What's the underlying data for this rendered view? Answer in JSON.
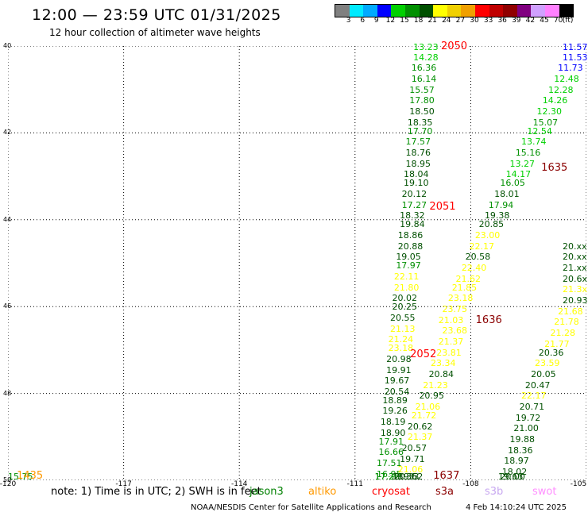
{
  "title": "12:00 — 23:59 UTC 01/31/2025",
  "subtitle": "12 hour collection of altimeter wave heights",
  "legend": {
    "colors": [
      "#808080",
      "#00eaff",
      "#00aaff",
      "#0000ff",
      "#00d000",
      "#009000",
      "#005000",
      "#ffff00",
      "#f0d000",
      "#f0a000",
      "#ff0000",
      "#c00000",
      "#900000",
      "#800080",
      "#d0a0ff",
      "#ff80ff",
      "#000000"
    ],
    "labels": [
      "3",
      "6",
      "9",
      "12",
      "15",
      "18",
      "21",
      "24",
      "27",
      "30",
      "33",
      "36",
      "39",
      "42",
      "45",
      "70"
    ],
    "unit": "(ft)"
  },
  "axes": {
    "lat_labels": [
      "40",
      "42",
      "44",
      "46",
      "48",
      "50"
    ],
    "lon_labels": [
      "-120",
      "-117",
      "-114",
      "-111",
      "-108",
      "-105"
    ]
  },
  "note": {
    "text": "note:  1) Time is in UTC;  2) SWH is in feet",
    "satellites": [
      {
        "name": "jason3",
        "color": "#008000"
      },
      {
        "name": "altiko",
        "color": "#ff9900"
      },
      {
        "name": "cryosat",
        "color": "#ff0000"
      },
      {
        "name": "s3a",
        "color": "#8b0000"
      },
      {
        "name": "s3b",
        "color": "#c8a8f0"
      },
      {
        "name": "swot",
        "color": "#ff90ff"
      }
    ]
  },
  "footer": {
    "agency": "NOAA/NESDIS Center for Satellite Applications and Research",
    "timestamp": "4 Feb 14:10:24 UTC 2025"
  },
  "chart_data": {
    "type": "scatter",
    "xlim": [
      -120,
      -105
    ],
    "ylim": [
      40,
      50
    ],
    "pass_labels": [
      {
        "text": "2050",
        "lon": -108.4,
        "lat": 40.0,
        "color": "#ff0000"
      },
      {
        "text": "2051",
        "lon": -108.7,
        "lat": 43.7,
        "color": "#ff0000"
      },
      {
        "text": "2052",
        "lon": -109.2,
        "lat": 47.1,
        "color": "#ff0000"
      },
      {
        "text": "1635",
        "lon": -105.8,
        "lat": 42.8,
        "color": "#8b0000"
      },
      {
        "text": "1636",
        "lon": -107.5,
        "lat": 46.3,
        "color": "#8b0000"
      },
      {
        "text": "1637",
        "lon": -108.6,
        "lat": 49.9,
        "color": "#8b0000"
      },
      {
        "text": "1435",
        "lon": -119.4,
        "lat": 49.9,
        "color": "#ff9900"
      }
    ],
    "series": [
      {
        "color_mode": "scale",
        "points": [
          {
            "lon": -109.2,
            "lat": 40.0,
            "v": "13.23"
          },
          {
            "lon": -109.2,
            "lat": 40.25,
            "v": "14.28"
          },
          {
            "lon": -109.25,
            "lat": 40.5,
            "v": "16.36"
          },
          {
            "lon": -109.25,
            "lat": 40.75,
            "v": "16.14"
          },
          {
            "lon": -109.3,
            "lat": 41.0,
            "v": "15.57"
          },
          {
            "lon": -109.3,
            "lat": 41.25,
            "v": "17.80"
          },
          {
            "lon": -109.3,
            "lat": 41.5,
            "v": "18.50"
          },
          {
            "lon": -109.35,
            "lat": 41.75,
            "v": "18.35"
          },
          {
            "lon": -109.35,
            "lat": 41.95,
            "v": "17.70"
          },
          {
            "lon": -109.4,
            "lat": 42.2,
            "v": "17.57"
          },
          {
            "lon": -109.4,
            "lat": 42.45,
            "v": "18.76"
          },
          {
            "lon": -109.4,
            "lat": 42.7,
            "v": "18.95"
          },
          {
            "lon": -109.45,
            "lat": 42.95,
            "v": "18.04"
          },
          {
            "lon": -109.45,
            "lat": 43.15,
            "v": "19.10"
          },
          {
            "lon": -109.5,
            "lat": 43.4,
            "v": "20.12"
          },
          {
            "lon": -109.5,
            "lat": 43.65,
            "v": "17.27"
          },
          {
            "lon": -109.55,
            "lat": 43.9,
            "v": "18.32"
          },
          {
            "lon": -109.55,
            "lat": 44.1,
            "v": "19.84"
          },
          {
            "lon": -109.6,
            "lat": 44.35,
            "v": "18.86"
          },
          {
            "lon": -109.6,
            "lat": 44.6,
            "v": "20.88"
          },
          {
            "lon": -109.65,
            "lat": 44.85,
            "v": "19.05"
          },
          {
            "lon": -109.65,
            "lat": 45.05,
            "v": "17.97"
          },
          {
            "lon": -109.7,
            "lat": 45.3,
            "v": "22.11"
          },
          {
            "lon": -109.7,
            "lat": 45.55,
            "v": "21.80"
          },
          {
            "lon": -109.75,
            "lat": 45.8,
            "v": "20.02"
          },
          {
            "lon": -109.75,
            "lat": 46.0,
            "v": "20.25"
          },
          {
            "lon": -109.8,
            "lat": 46.25,
            "v": "20.55"
          },
          {
            "lon": -109.8,
            "lat": 46.5,
            "v": "21.13"
          },
          {
            "lon": -109.85,
            "lat": 46.75,
            "v": "21.24"
          },
          {
            "lon": -109.85,
            "lat": 46.95,
            "v": "23.18"
          },
          {
            "lon": -109.9,
            "lat": 47.2,
            "v": "20.98"
          },
          {
            "lon": -109.9,
            "lat": 47.45,
            "v": "19.91"
          },
          {
            "lon": -109.95,
            "lat": 47.7,
            "v": "19.67"
          },
          {
            "lon": -109.95,
            "lat": 47.95,
            "v": "20.54"
          },
          {
            "lon": -110.0,
            "lat": 48.15,
            "v": "18.89"
          },
          {
            "lon": -110.0,
            "lat": 48.4,
            "v": "19.26"
          },
          {
            "lon": -110.05,
            "lat": 48.65,
            "v": "18.19"
          },
          {
            "lon": -110.05,
            "lat": 48.9,
            "v": "18.90"
          },
          {
            "lon": -110.1,
            "lat": 49.1,
            "v": "17.91"
          },
          {
            "lon": -110.1,
            "lat": 49.35,
            "v": "16.66"
          },
          {
            "lon": -110.15,
            "lat": 49.6,
            "v": "17.51"
          },
          {
            "lon": -110.15,
            "lat": 49.85,
            "v": "16.95"
          },
          {
            "lon": -110.2,
            "lat": 50.05,
            "v": "17.32"
          },
          {
            "lon": -110.2,
            "lat": 50.3,
            "v": "17.26"
          }
        ]
      },
      {
        "color_mode": "scale",
        "points": [
          {
            "lon": -105.15,
            "lat": 40.0,
            "v": "11.57"
          },
          {
            "lon": -105.3,
            "lat": 40.25,
            "v": "11.53"
          },
          {
            "lon": -105.45,
            "lat": 40.5,
            "v": "11.73"
          },
          {
            "lon": -105.55,
            "lat": 40.75,
            "v": "12.48"
          },
          {
            "lon": -105.7,
            "lat": 41.0,
            "v": "12.28"
          },
          {
            "lon": -105.85,
            "lat": 41.25,
            "v": "14.26"
          },
          {
            "lon": -106.0,
            "lat": 41.5,
            "v": "12.30"
          },
          {
            "lon": -106.1,
            "lat": 41.75,
            "v": "15.07"
          },
          {
            "lon": -106.25,
            "lat": 41.95,
            "v": "12.54"
          },
          {
            "lon": -106.4,
            "lat": 42.2,
            "v": "13.74"
          },
          {
            "lon": -106.55,
            "lat": 42.45,
            "v": "15.16"
          },
          {
            "lon": -106.7,
            "lat": 42.7,
            "v": "13.27"
          },
          {
            "lon": -106.8,
            "lat": 42.95,
            "v": "14.17"
          },
          {
            "lon": -106.95,
            "lat": 43.15,
            "v": "16.05"
          },
          {
            "lon": -107.1,
            "lat": 43.4,
            "v": "18.01"
          },
          {
            "lon": -107.25,
            "lat": 43.65,
            "v": "17.94"
          },
          {
            "lon": -107.35,
            "lat": 43.9,
            "v": "19.38"
          },
          {
            "lon": -107.5,
            "lat": 44.1,
            "v": "20.85"
          },
          {
            "lon": -107.6,
            "lat": 44.35,
            "v": "23.00"
          },
          {
            "lon": -107.75,
            "lat": 44.6,
            "v": "22.17"
          },
          {
            "lon": -107.85,
            "lat": 44.85,
            "v": "20.58"
          },
          {
            "lon": -107.95,
            "lat": 45.1,
            "v": "22.40"
          },
          {
            "lon": -108.1,
            "lat": 45.35,
            "v": "21.62"
          },
          {
            "lon": -108.2,
            "lat": 45.55,
            "v": "21.85"
          },
          {
            "lon": -108.3,
            "lat": 45.8,
            "v": "23.18"
          },
          {
            "lon": -108.45,
            "lat": 46.05,
            "v": "23.75"
          },
          {
            "lon": -108.55,
            "lat": 46.3,
            "v": "21.03"
          },
          {
            "lon": -108.45,
            "lat": 46.55,
            "v": "23.68"
          },
          {
            "lon": -108.55,
            "lat": 46.8,
            "v": "21.37"
          },
          {
            "lon": -108.6,
            "lat": 47.05,
            "v": "23.81"
          },
          {
            "lon": -108.75,
            "lat": 47.3,
            "v": "23.34"
          },
          {
            "lon": -108.8,
            "lat": 47.55,
            "v": "20.84"
          },
          {
            "lon": -108.95,
            "lat": 47.8,
            "v": "21.23"
          },
          {
            "lon": -109.05,
            "lat": 48.05,
            "v": "20.95"
          },
          {
            "lon": -109.15,
            "lat": 48.3,
            "v": "21.06"
          },
          {
            "lon": -109.25,
            "lat": 48.5,
            "v": "21.72"
          },
          {
            "lon": -109.35,
            "lat": 48.75,
            "v": "20.62"
          },
          {
            "lon": -109.35,
            "lat": 49.0,
            "v": "21.37"
          },
          {
            "lon": -109.5,
            "lat": 49.25,
            "v": "20.57"
          },
          {
            "lon": -109.55,
            "lat": 49.5,
            "v": "19.71"
          },
          {
            "lon": -109.6,
            "lat": 49.75,
            "v": "21.06"
          },
          {
            "lon": -109.6,
            "lat": 50.0,
            "v": "19.62"
          },
          {
            "lon": -109.75,
            "lat": 50.25,
            "v": "18.35"
          },
          {
            "lon": -109.7,
            "lat": 50.5,
            "v": "20.33"
          }
        ]
      },
      {
        "color_mode": "scale",
        "points": [
          {
            "lon": -104.9,
            "lat": 44.6,
            "v": "20.xx"
          },
          {
            "lon": -104.95,
            "lat": 44.85,
            "v": "20.xx"
          },
          {
            "lon": -105.05,
            "lat": 45.1,
            "v": "21.xx"
          },
          {
            "lon": -105.1,
            "lat": 45.35,
            "v": "20.6x"
          },
          {
            "lon": -105.2,
            "lat": 45.6,
            "v": "21.3x"
          },
          {
            "lon": -105.3,
            "lat": 45.85,
            "v": "20.93"
          },
          {
            "lon": -105.45,
            "lat": 46.1,
            "v": "21.68"
          },
          {
            "lon": -105.55,
            "lat": 46.35,
            "v": "21.78"
          },
          {
            "lon": -105.65,
            "lat": 46.6,
            "v": "21.28"
          },
          {
            "lon": -105.8,
            "lat": 46.85,
            "v": "21.77"
          },
          {
            "lon": -105.95,
            "lat": 47.05,
            "v": "20.36"
          },
          {
            "lon": -106.05,
            "lat": 47.3,
            "v": "23.59"
          },
          {
            "lon": -106.15,
            "lat": 47.55,
            "v": "20.05"
          },
          {
            "lon": -106.3,
            "lat": 47.8,
            "v": "20.47"
          },
          {
            "lon": -106.4,
            "lat": 48.05,
            "v": "22.17"
          },
          {
            "lon": -106.45,
            "lat": 48.3,
            "v": "20.71"
          },
          {
            "lon": -106.55,
            "lat": 48.55,
            "v": "19.72"
          },
          {
            "lon": -106.6,
            "lat": 48.8,
            "v": "21.00"
          },
          {
            "lon": -106.7,
            "lat": 49.05,
            "v": "19.88"
          },
          {
            "lon": -106.75,
            "lat": 49.3,
            "v": "18.36"
          },
          {
            "lon": -106.85,
            "lat": 49.55,
            "v": "18.97"
          },
          {
            "lon": -106.9,
            "lat": 49.8,
            "v": "18.02"
          },
          {
            "lon": -106.95,
            "lat": 50.05,
            "v": "20.00"
          },
          {
            "lon": -107.0,
            "lat": 50.3,
            "v": "19.63"
          }
        ]
      },
      {
        "color_mode": "scale",
        "points": [
          {
            "lon": -119.85,
            "lat": 49.95,
            "v": "15.75"
          }
        ]
      }
    ]
  }
}
